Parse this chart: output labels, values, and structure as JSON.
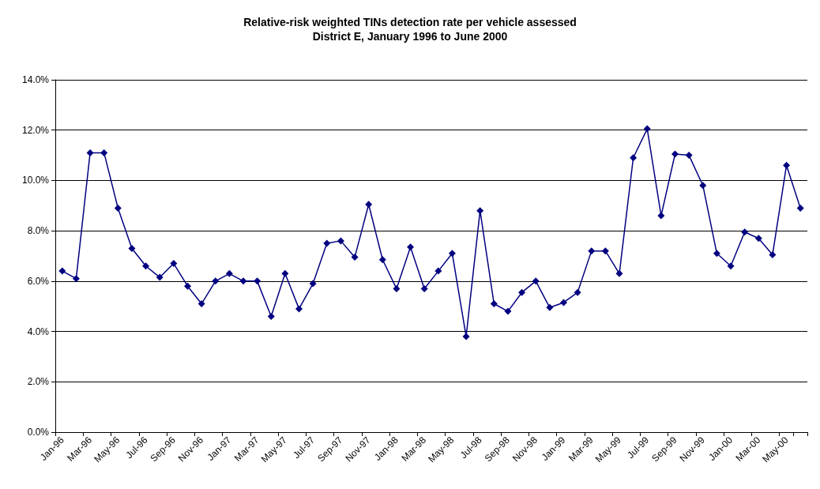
{
  "chart_data": {
    "type": "line",
    "title": "Relative-risk weighted TINs detection rate per vehicle assessed",
    "subtitle": "District E, January 1996 to June 2000",
    "categories": [
      "Jan-96",
      null,
      "Mar-96",
      null,
      "May-96",
      null,
      "Jul-96",
      null,
      "Sep-96",
      null,
      "Nov-96",
      null,
      "Jan-97",
      null,
      "Mar-97",
      null,
      "May-97",
      null,
      "Jul-97",
      null,
      "Sep-97",
      null,
      "Nov-97",
      null,
      "Jan-98",
      null,
      "Mar-98",
      null,
      "May-98",
      null,
      "Jul-98",
      null,
      "Sep-98",
      null,
      "Nov-98",
      null,
      "Jan-99",
      null,
      "Mar-99",
      null,
      "May-99",
      null,
      "Jul-99",
      null,
      "Sep-99",
      null,
      "Nov-99",
      null,
      "Jan-00",
      null,
      "Mar-00",
      null,
      "May-00",
      null
    ],
    "series": [
      {
        "color": "#000080",
        "values": [
          6.4,
          6.1,
          11.1,
          11.1,
          8.9,
          7.3,
          6.6,
          6.15,
          6.7,
          5.8,
          5.1,
          6.0,
          6.3,
          6.0,
          6.0,
          4.6,
          6.3,
          4.9,
          5.9,
          7.5,
          7.6,
          6.95,
          9.05,
          6.85,
          5.7,
          7.35,
          5.7,
          6.4,
          7.1,
          3.8,
          8.8,
          5.1,
          4.8,
          5.55,
          6.0,
          4.95,
          5.15,
          5.55,
          7.2,
          7.2,
          6.3,
          10.9,
          12.05,
          8.6,
          11.05,
          11.0,
          9.8,
          7.1,
          6.6,
          7.95,
          7.7,
          7.05,
          10.6,
          8.9
        ]
      }
    ],
    "ylim": [
      0,
      14
    ],
    "yticks": [
      {
        "value": 0,
        "label": "0.0%"
      },
      {
        "value": 2,
        "label": "2.0%"
      },
      {
        "value": 4,
        "label": "4.0%"
      },
      {
        "value": 6,
        "label": "6.0%"
      },
      {
        "value": 8,
        "label": "8.0%"
      },
      {
        "value": 10,
        "label": "10.0%"
      },
      {
        "value": 12,
        "label": "12.0%"
      },
      {
        "value": 14,
        "label": "14.0%"
      }
    ],
    "grid": "y",
    "marker": "diamond",
    "line_style": "solid"
  }
}
